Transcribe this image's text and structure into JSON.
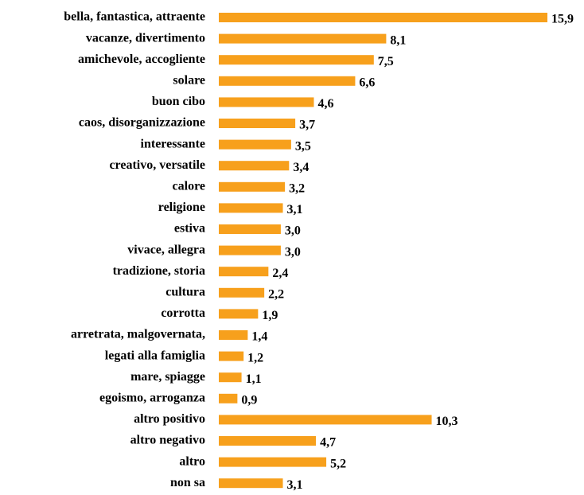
{
  "chart_data": {
    "type": "bar",
    "orientation": "horizontal",
    "color": "#f7a01c",
    "categories": [
      "bella, fantastica, attraente",
      "vacanze, divertimento",
      "amichevole, accogliente",
      "solare",
      "buon cibo",
      "caos, disorganizzazione",
      "interessante",
      "creativo, versatile",
      "calore",
      "religione",
      "estiva",
      "vivace, allegra",
      "tradizione, storia",
      "cultura",
      "corrotta",
      "arretrata, malgovernata,",
      "legati alla famiglia",
      "mare, spiagge",
      "egoismo, arroganza",
      "altro positivo",
      "altro negativo",
      "altro",
      "non sa"
    ],
    "values": [
      15.9,
      8.1,
      7.5,
      6.6,
      4.6,
      3.7,
      3.5,
      3.4,
      3.2,
      3.1,
      3.0,
      3.0,
      2.4,
      2.2,
      1.9,
      1.4,
      1.2,
      1.1,
      0.9,
      10.3,
      4.7,
      5.2,
      3.1
    ],
    "value_labels": [
      "15,9",
      "8,1",
      "7,5",
      "6,6",
      "4,6",
      "3,7",
      "3,5",
      "3,4",
      "3,2",
      "3,1",
      "3,0",
      "3,0",
      "2,4",
      "2,2",
      "1,9",
      "1,4",
      "1,2",
      "1,1",
      "0,9",
      "10,3",
      "4,7",
      "5,2",
      "3,1"
    ]
  }
}
